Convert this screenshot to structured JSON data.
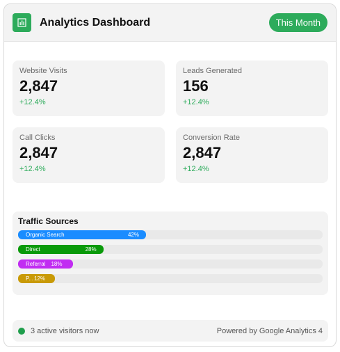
{
  "header": {
    "title": "Analytics Dashboard",
    "logo_icon": "bar-chart-icon",
    "period_button": "This Month"
  },
  "stats": [
    {
      "label": "Website Visits",
      "value": "2,847",
      "change": "+12.4%"
    },
    {
      "label": "Leads Generated",
      "value": "156",
      "change": "+12.4%"
    },
    {
      "label": "Call Clicks",
      "value": "2,847",
      "change": "+12.4%"
    },
    {
      "label": "Conversion Rate",
      "value": "2,847",
      "change": "+12.4%"
    }
  ],
  "traffic": {
    "title": "Traffic Sources",
    "sources": [
      {
        "label": "Organic Search",
        "percent_label": "42%",
        "percent": 42,
        "color": "#1a8cff"
      },
      {
        "label": "Direct",
        "percent_label": "28%",
        "percent": 28,
        "color": "#0a9a0a"
      },
      {
        "label": "Referral",
        "percent_label": "18%",
        "percent": 18,
        "color": "#c12cf2"
      },
      {
        "label": "P...",
        "percent_label": "12%",
        "percent": 12,
        "color": "#c99a06"
      }
    ]
  },
  "footer": {
    "active_visitors": "3 active visitors now",
    "powered_by": "Powered by Google Analytics 4",
    "status_color": "#1f9e4c"
  },
  "colors": {
    "accent": "#2dab5b",
    "panel": "#f3f3f3"
  }
}
